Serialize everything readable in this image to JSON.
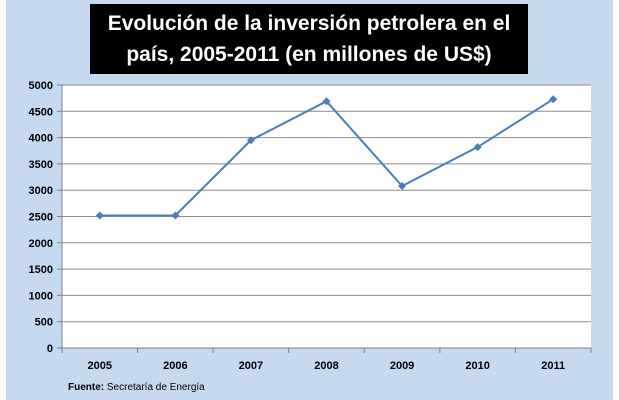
{
  "chart_data": {
    "type": "line",
    "title_lines": [
      "Evolución de la inversión petrolera en el",
      "país, 2005-2011 (en millones de US$)"
    ],
    "categories": [
      "2005",
      "2006",
      "2007",
      "2008",
      "2009",
      "2010",
      "2011"
    ],
    "values": [
      2520,
      2520,
      3950,
      4690,
      3080,
      3820,
      4730
    ],
    "ylim": [
      0,
      5000
    ],
    "yticks": [
      "0",
      "500",
      "1000",
      "1500",
      "2000",
      "2500",
      "3000",
      "3500",
      "4000",
      "4500",
      "5000"
    ],
    "grid": true,
    "legend": "none",
    "line_color": "#4a7ebb",
    "background_color": "#c6d9ef",
    "plot_color": "#ffffff"
  },
  "source": {
    "label": "Fuente:",
    "text": "Secretaría  de Energía"
  }
}
